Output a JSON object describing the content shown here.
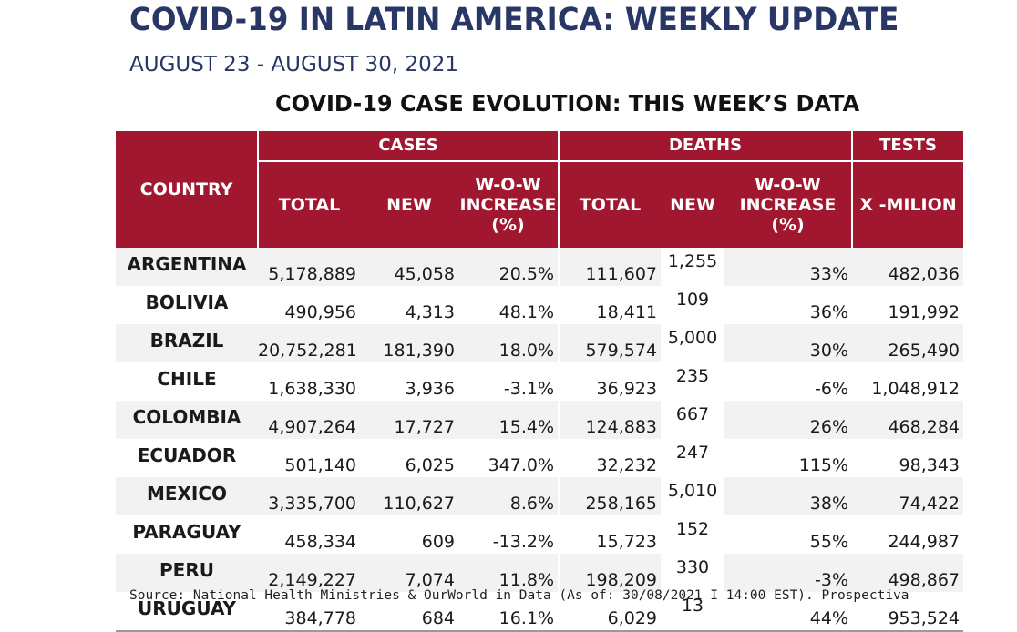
{
  "header": {
    "title": "COVID-19 IN LATIN AMERICA: WEEKLY UPDATE",
    "subtitle": "AUGUST 23 - AUGUST 30, 2021",
    "section_title": "COVID-19 CASE EVOLUTION: THIS WEEK’S DATA"
  },
  "table": {
    "group_headers": {
      "country": "COUNTRY",
      "cases": "CASES",
      "deaths": "DEATHS",
      "tests": "TESTS"
    },
    "sub_headers": {
      "cases_total": "TOTAL",
      "cases_new": "NEW",
      "cases_wow": "W-O-W INCREASE (%)",
      "deaths_total": "TOTAL",
      "deaths_new": "NEW",
      "deaths_wow": "W-O-W INCREASE (%)",
      "tests_per_million": "X -MILION"
    },
    "rows": [
      {
        "country": "ARGENTINA",
        "cases_total": "5,178,889",
        "cases_new": "45,058",
        "cases_wow": "20.5%",
        "deaths_total": "111,607",
        "deaths_new": "1,255",
        "deaths_wow": "33%",
        "tests": "482,036"
      },
      {
        "country": "BOLIVIA",
        "cases_total": "490,956",
        "cases_new": "4,313",
        "cases_wow": "48.1%",
        "deaths_total": "18,411",
        "deaths_new": "109",
        "deaths_wow": "36%",
        "tests": "191,992"
      },
      {
        "country": "BRAZIL",
        "cases_total": "20,752,281",
        "cases_new": "181,390",
        "cases_wow": "18.0%",
        "deaths_total": "579,574",
        "deaths_new": "5,000",
        "deaths_wow": "30%",
        "tests": "265,490"
      },
      {
        "country": "CHILE",
        "cases_total": "1,638,330",
        "cases_new": "3,936",
        "cases_wow": "-3.1%",
        "deaths_total": "36,923",
        "deaths_new": "235",
        "deaths_wow": "-6%",
        "tests": "1,048,912"
      },
      {
        "country": "COLOMBIA",
        "cases_total": "4,907,264",
        "cases_new": "17,727",
        "cases_wow": "15.4%",
        "deaths_total": "124,883",
        "deaths_new": "667",
        "deaths_wow": "26%",
        "tests": "468,284"
      },
      {
        "country": "ECUADOR",
        "cases_total": "501,140",
        "cases_new": "6,025",
        "cases_wow": "347.0%",
        "deaths_total": "32,232",
        "deaths_new": "247",
        "deaths_wow": "115%",
        "tests": "98,343"
      },
      {
        "country": "MEXICO",
        "cases_total": "3,335,700",
        "cases_new": "110,627",
        "cases_wow": "8.6%",
        "deaths_total": "258,165",
        "deaths_new": "5,010",
        "deaths_wow": "38%",
        "tests": "74,422"
      },
      {
        "country": "PARAGUAY",
        "cases_total": "458,334",
        "cases_new": "609",
        "cases_wow": "-13.2%",
        "deaths_total": "15,723",
        "deaths_new": "152",
        "deaths_wow": "55%",
        "tests": "244,987"
      },
      {
        "country": "PERU",
        "cases_total": "2,149,227",
        "cases_new": "7,074",
        "cases_wow": "11.8%",
        "deaths_total": "198,209",
        "deaths_new": "330",
        "deaths_wow": "-3%",
        "tests": "498,867"
      },
      {
        "country": "URUGUAY",
        "cases_total": "384,778",
        "cases_new": "684",
        "cases_wow": "16.1%",
        "deaths_total": "6,029",
        "deaths_new": "13",
        "deaths_wow": "44%",
        "tests": "953,524"
      }
    ]
  },
  "source": "Source: National Health Ministries & OurWorld in Data (As of: 30/08/2021 I 14:00 EST). Prospectiva",
  "colors": {
    "title": "#283765",
    "header_bg": "#a0172f",
    "header_text": "#ffffff",
    "row_band": "#f2f2f2"
  }
}
